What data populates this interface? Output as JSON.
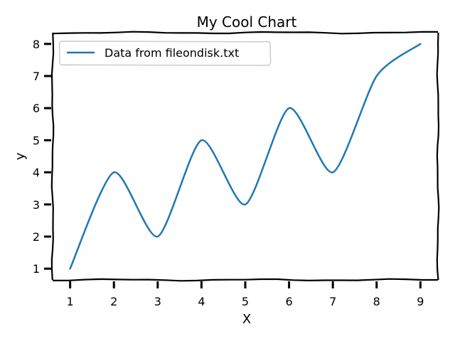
{
  "chart_data": {
    "type": "line",
    "title": "My Cool Chart",
    "xlabel": "X",
    "ylabel": "y",
    "xlim": [
      0.6,
      9.4
    ],
    "ylim": [
      0.65,
      8.35
    ],
    "xticks": [
      1,
      2,
      3,
      4,
      5,
      6,
      7,
      8,
      9
    ],
    "yticks": [
      1,
      2,
      3,
      4,
      5,
      6,
      7,
      8
    ],
    "grid": false,
    "legend_position": "top-left",
    "series": [
      {
        "name": "Data from fileondisk.txt",
        "color": "#1f77b4",
        "x": [
          1,
          2,
          3,
          4,
          5,
          6,
          7,
          8,
          9
        ],
        "y": [
          1,
          4,
          2,
          5,
          3,
          6,
          4,
          7,
          8
        ]
      }
    ]
  }
}
